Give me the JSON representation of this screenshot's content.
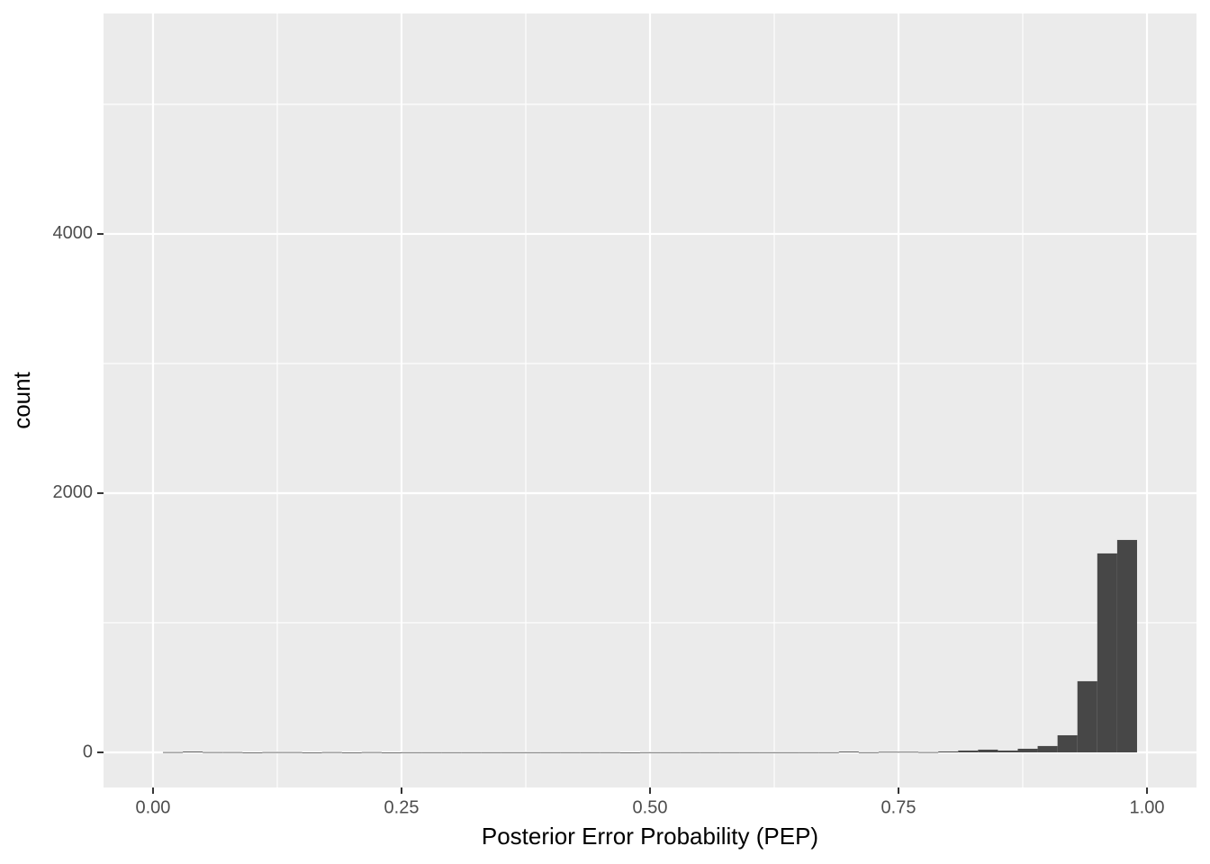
{
  "chart_data": {
    "type": "histogram",
    "x_label": "Posterior Error Probability (PEP)",
    "y_label": "count",
    "bins": [
      0.01,
      0.03,
      0.05,
      0.07,
      0.09,
      0.11,
      0.13,
      0.15,
      0.17,
      0.19,
      0.21,
      0.23,
      0.25,
      0.27,
      0.29,
      0.31,
      0.33,
      0.35,
      0.37,
      0.39,
      0.41,
      0.43,
      0.45,
      0.47,
      0.49,
      0.51,
      0.53,
      0.55,
      0.57,
      0.59,
      0.61,
      0.63,
      0.65,
      0.67,
      0.69,
      0.71,
      0.73,
      0.75,
      0.77,
      0.79,
      0.81,
      0.83,
      0.85,
      0.87,
      0.89,
      0.91,
      0.93,
      0.95,
      0.97,
      0.99
    ],
    "counts": [
      2,
      6,
      2,
      2,
      0,
      2,
      2,
      0,
      2,
      0,
      2,
      0,
      1,
      1,
      1,
      1,
      1,
      1,
      1,
      1,
      1,
      1,
      1,
      0,
      1,
      1,
      1,
      1,
      1,
      1,
      1,
      1,
      1,
      1,
      6,
      1,
      4,
      4,
      2,
      7,
      14,
      21,
      14,
      28,
      49,
      132,
      549,
      1535,
      1639
    ],
    "color": "#474747",
    "xlim": [
      -0.0498,
      1.0498
    ],
    "ylim": [
      -271,
      5701
    ],
    "xticks": [
      {
        "value": 0,
        "label": "0.00"
      },
      {
        "value": 0.25,
        "label": "0.25"
      },
      {
        "value": 0.5,
        "label": "0.50"
      },
      {
        "value": 0.75,
        "label": "0.75"
      },
      {
        "value": 1,
        "label": "1.00"
      }
    ],
    "yticks": [
      0,
      2000,
      4000
    ],
    "x_minor_grid": [
      0.125,
      0.375,
      0.625,
      0.875
    ],
    "y_minor_grid": [
      1000,
      3000,
      5000
    ],
    "grid": true
  }
}
